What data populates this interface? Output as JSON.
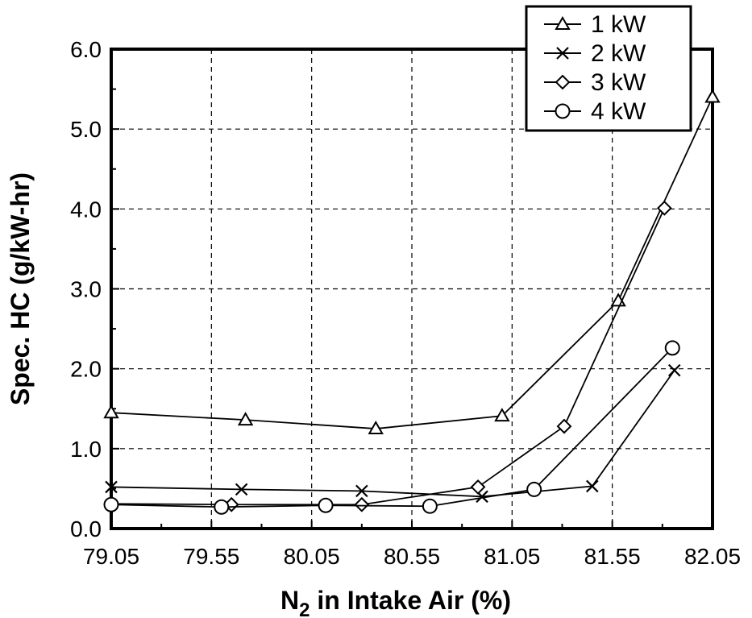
{
  "chart_data": {
    "type": "line",
    "title": "",
    "xlabel": "N2 in Intake Air (%)",
    "xlabel_main": "N",
    "xlabel_sub": "2",
    "xlabel_rest": " in Intake Air (%)",
    "ylabel": "Spec. HC (g/kW-hr)",
    "xlim": [
      79.05,
      82.05
    ],
    "ylim": [
      0.0,
      6.0
    ],
    "xticks": [
      79.05,
      79.55,
      80.05,
      80.55,
      81.05,
      81.55,
      82.05
    ],
    "xtick_labels": [
      "79.05",
      "79.55",
      "80.05",
      "80.55",
      "81.05",
      "81.55",
      "82.05"
    ],
    "yticks": [
      0.0,
      1.0,
      2.0,
      3.0,
      4.0,
      5.0,
      6.0
    ],
    "ytick_labels": [
      "0.0",
      "1.0",
      "2.0",
      "3.0",
      "4.0",
      "5.0",
      "6.0"
    ],
    "grid": true,
    "legend_position": "top-right",
    "series": [
      {
        "name": "1 kW",
        "marker": "triangle",
        "x": [
          79.05,
          79.72,
          80.37,
          81.0,
          81.58,
          82.05
        ],
        "y": [
          1.45,
          1.36,
          1.25,
          1.41,
          2.85,
          5.4
        ]
      },
      {
        "name": "2 kW",
        "marker": "x",
        "x": [
          79.05,
          79.7,
          80.3,
          80.9,
          81.45,
          81.86
        ],
        "y": [
          0.52,
          0.49,
          0.47,
          0.4,
          0.53,
          1.98
        ]
      },
      {
        "name": "3 kW",
        "marker": "diamond",
        "x": [
          79.05,
          79.65,
          80.3,
          80.88,
          81.31,
          81.81
        ],
        "y": [
          0.31,
          0.3,
          0.3,
          0.52,
          1.28,
          4.01
        ]
      },
      {
        "name": "4 kW",
        "marker": "circle",
        "x": [
          79.05,
          79.6,
          80.12,
          80.64,
          81.16,
          81.85
        ],
        "y": [
          0.3,
          0.27,
          0.29,
          0.28,
          0.49,
          2.26
        ]
      }
    ]
  }
}
